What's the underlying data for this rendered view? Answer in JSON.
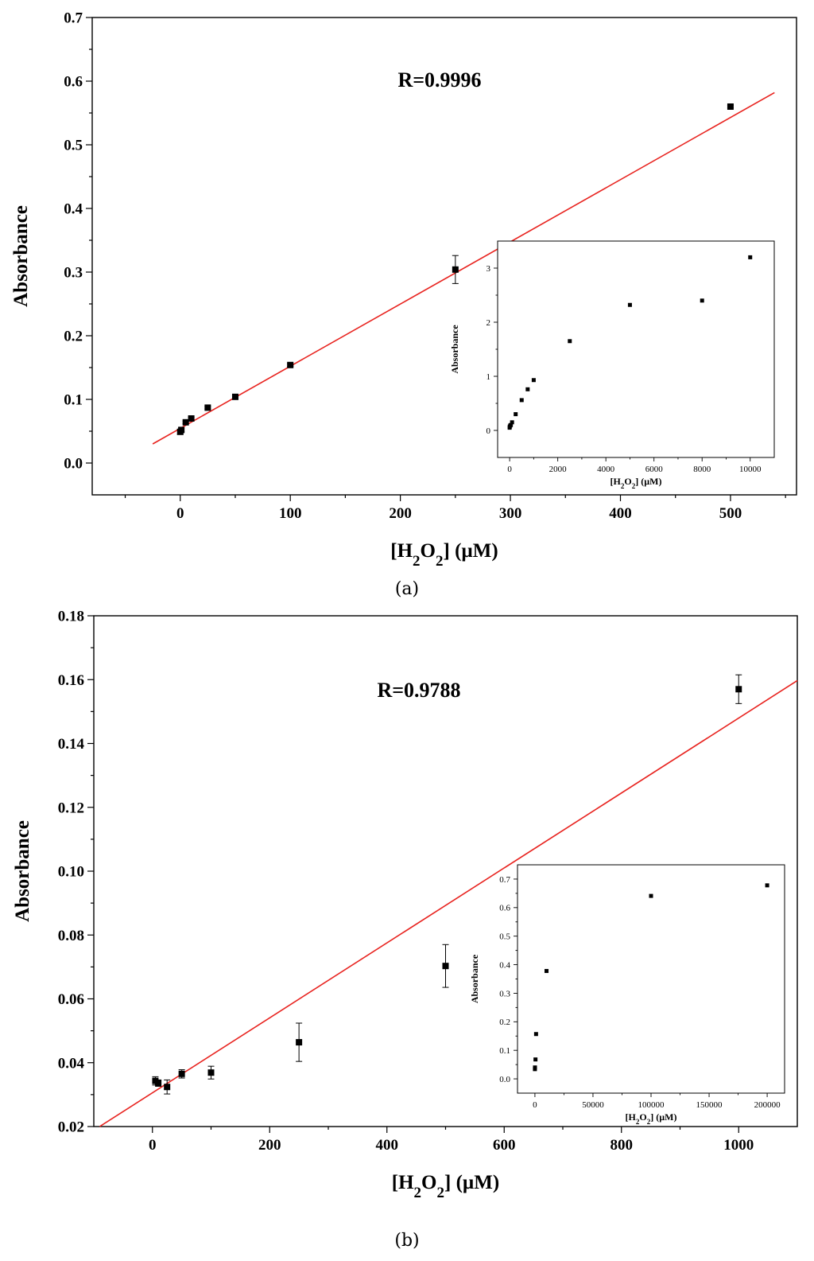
{
  "charts": [
    {
      "panel_label": "(a)",
      "annotation": "R=0.9996",
      "chart_data": {
        "type": "scatter",
        "xlabel": "[H2O2] (µM)",
        "ylabel": "Absorbance",
        "xlim": [
          -80,
          560
        ],
        "ylim": [
          -0.05,
          0.7
        ],
        "xticks": [
          0,
          100,
          200,
          300,
          400,
          500
        ],
        "yticks": [
          0.0,
          0.1,
          0.2,
          0.3,
          0.4,
          0.5,
          0.6,
          0.7
        ],
        "ytick_decimals": 1,
        "x": [
          0,
          1,
          5,
          10,
          25,
          50,
          100,
          250,
          500
        ],
        "y": [
          0.049,
          0.052,
          0.064,
          0.07,
          0.087,
          0.104,
          0.154,
          0.304,
          0.56
        ],
        "yerr": [
          0.004,
          0.003,
          0.002,
          0.002,
          0.002,
          0.003,
          0.002,
          0.022,
          0.002
        ],
        "fit_line": {
          "x": [
            -25,
            540
          ],
          "y": [
            0.03,
            0.582
          ],
          "color": "#e8231f"
        },
        "grid": false,
        "inset": {
          "type": "scatter",
          "xlabel": "[H2O2] (µM)",
          "ylabel": "Absorbance",
          "xlim": [
            -500,
            11000
          ],
          "ylim": [
            -0.5,
            3.5
          ],
          "xticks": [
            0,
            2000,
            4000,
            6000,
            8000,
            10000
          ],
          "yticks": [
            0,
            1,
            2,
            3
          ],
          "ytick_decimals": 0,
          "x": [
            0,
            5,
            25,
            50,
            100,
            250,
            500,
            750,
            1000,
            2500,
            5000,
            8000,
            10000
          ],
          "y": [
            0.05,
            0.07,
            0.09,
            0.1,
            0.15,
            0.3,
            0.56,
            0.76,
            0.93,
            1.65,
            2.32,
            2.4,
            3.2
          ]
        }
      }
    },
    {
      "panel_label": "(b)",
      "annotation": "R=0.9788",
      "chart_data": {
        "type": "scatter",
        "xlabel": "[H2O2] (µM)",
        "ylabel": "Absorbance",
        "xlim": [
          -100,
          1100
        ],
        "ylim": [
          0.02,
          0.18
        ],
        "xticks": [
          0,
          200,
          400,
          600,
          800,
          1000
        ],
        "yticks": [
          0.02,
          0.04,
          0.06,
          0.08,
          0.1,
          0.12,
          0.14,
          0.16,
          0.18
        ],
        "ytick_decimals": 2,
        "x": [
          5,
          10,
          25,
          50,
          100,
          250,
          500,
          1000
        ],
        "y": [
          0.0343,
          0.0336,
          0.0324,
          0.0365,
          0.0369,
          0.0464,
          0.0703,
          0.157
        ],
        "yerr": [
          0.0013,
          0.001,
          0.0022,
          0.0013,
          0.002,
          0.006,
          0.0067,
          0.0045
        ],
        "fit_line": {
          "x": [
            -90,
            1100
          ],
          "y": [
            0.02,
            0.1597
          ],
          "color": "#e8231f"
        },
        "grid": false,
        "inset": {
          "type": "scatter",
          "xlabel": "[H2O2] (µM)",
          "ylabel": "Absorbance",
          "xlim": [
            -15000,
            215000
          ],
          "ylim": [
            -0.05,
            0.75
          ],
          "xticks": [
            0,
            50000,
            100000,
            150000,
            200000
          ],
          "yticks": [
            0.0,
            0.1,
            0.2,
            0.3,
            0.4,
            0.5,
            0.6,
            0.7
          ],
          "ytick_decimals": 1,
          "x": [
            5,
            50,
            500,
            1000,
            10000,
            100000,
            200000
          ],
          "y": [
            0.034,
            0.04,
            0.068,
            0.157,
            0.378,
            0.641,
            0.678
          ]
        }
      }
    }
  ]
}
